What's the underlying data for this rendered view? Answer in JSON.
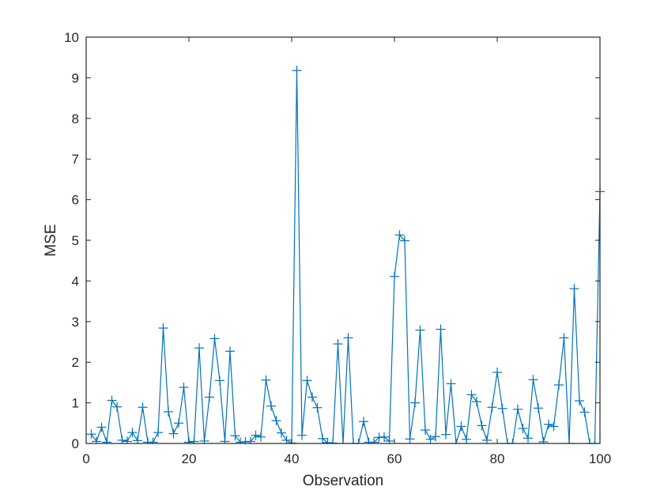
{
  "chart_data": {
    "type": "line",
    "title": "",
    "xlabel": "Observation",
    "ylabel": "MSE",
    "xlim": [
      0,
      100
    ],
    "ylim": [
      0,
      10
    ],
    "xticks": [
      0,
      20,
      40,
      60,
      80,
      100
    ],
    "yticks": [
      0,
      1,
      2,
      3,
      4,
      5,
      6,
      7,
      8,
      9,
      10
    ],
    "grid": false,
    "legend": null,
    "marker": "+",
    "line_color": "#0072BD",
    "series": [
      {
        "name": "MSE",
        "x": [
          1,
          2,
          3,
          4,
          5,
          6,
          7,
          8,
          9,
          10,
          11,
          12,
          13,
          14,
          15,
          16,
          17,
          18,
          19,
          20,
          21,
          22,
          23,
          24,
          25,
          26,
          27,
          28,
          29,
          30,
          31,
          32,
          33,
          34,
          35,
          36,
          37,
          38,
          39,
          40,
          41,
          42,
          43,
          44,
          45,
          46,
          47,
          48,
          49,
          50,
          51,
          52,
          53,
          54,
          55,
          56,
          57,
          58,
          59,
          60,
          61,
          62,
          63,
          64,
          65,
          66,
          67,
          68,
          69,
          70,
          71,
          72,
          73,
          74,
          75,
          76,
          77,
          78,
          79,
          80,
          81,
          82,
          83,
          84,
          85,
          86,
          87,
          88,
          89,
          90,
          91,
          92,
          93,
          94,
          95,
          96,
          97,
          98,
          99,
          100
        ],
        "values": [
          0.23,
          0.05,
          0.4,
          0.03,
          1.06,
          0.9,
          0.08,
          0.05,
          0.27,
          0.07,
          0.89,
          0.03,
          0.03,
          0.27,
          2.84,
          0.78,
          0.24,
          0.5,
          1.38,
          0.03,
          0.05,
          2.35,
          0.06,
          1.14,
          2.58,
          1.55,
          0.05,
          2.27,
          0.19,
          0.03,
          0.04,
          0.05,
          0.2,
          0.16,
          1.56,
          0.92,
          0.56,
          0.26,
          0.08,
          0.01,
          9.18,
          0.2,
          1.55,
          1.14,
          0.88,
          0.12,
          0.02,
          0.01,
          2.45,
          0.0,
          2.6,
          0.0,
          0.0,
          0.54,
          0.03,
          0.03,
          0.15,
          0.16,
          0.06,
          4.11,
          5.13,
          4.99,
          0.11,
          1.0,
          2.79,
          0.33,
          0.1,
          0.17,
          2.81,
          0.22,
          1.47,
          0.0,
          0.42,
          0.1,
          1.2,
          1.03,
          0.44,
          0.08,
          0.89,
          1.75,
          0.86,
          0.0,
          0.0,
          0.84,
          0.37,
          0.13,
          1.57,
          0.87,
          0.04,
          0.47,
          0.42,
          1.44,
          2.6,
          0.0,
          3.81,
          1.05,
          0.77,
          0.0,
          0.0,
          6.2
        ]
      }
    ]
  }
}
